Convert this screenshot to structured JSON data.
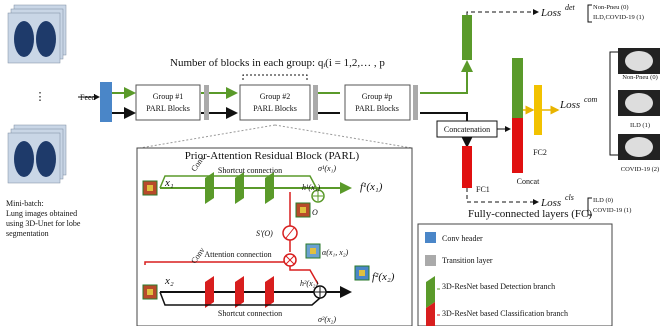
{
  "input": {
    "lines": [
      "Mini-batch:",
      "Lung images obtained",
      "using 3D-Unet for lobe",
      "segmentation"
    ],
    "ellipsis": "⋮"
  },
  "feed": "Feed",
  "groups_note": "Number of blocks in each group: qᵢ(i = 1,2,… , p",
  "groups": [
    {
      "name": "Group #1",
      "label": "PARL Blocks"
    },
    {
      "name": "Group #2",
      "label": "PARL Blocks"
    },
    {
      "name": "Group #p",
      "label": "PARL Blocks"
    }
  ],
  "parl": {
    "title": "Prior-Attention Residual Block (PARL)",
    "top_shortcut": "Shortcut connection",
    "sigma1": "σ¹(x₁)",
    "x1": "x₁",
    "conv1": "Conv",
    "h1": "h¹(x₁)",
    "f1": "f¹(x₁)",
    "o": "O",
    "s": "S'(O)",
    "attention": "Attention connection",
    "alpha": "α(x₁, x₂)",
    "x2": "x₂",
    "conv2": "Conv",
    "h2": "h²(x₂)",
    "f2": "f²(x₂)",
    "bottom_shortcut": "Shortcut connection",
    "sigma2": "σ²(x₂)"
  },
  "head": {
    "concatenation": "Concatenation",
    "fc2": "FC2",
    "concat": "Concat",
    "fc1": "FC1",
    "fc_caption": "Fully-connected layers (FC)"
  },
  "losses": {
    "det": {
      "name": "Loss",
      "sup": "det",
      "classes": [
        "Non-Pneu (0)",
        "ILD,COVID-19 (1)"
      ]
    },
    "com": {
      "name": "Loss",
      "sup": "com",
      "classes": [
        "Non-Pneu (0)",
        "ILD (1)",
        "COVID-19 (2)"
      ]
    },
    "cls": {
      "name": "Loss",
      "sup": "cls",
      "classes": [
        "ILD (0)",
        "COVID-19 (1)"
      ]
    }
  },
  "legend": [
    "Conv header",
    "Transition layer",
    "3D-ResNet based Detection branch",
    "3D-ResNet based Classification branch"
  ]
}
